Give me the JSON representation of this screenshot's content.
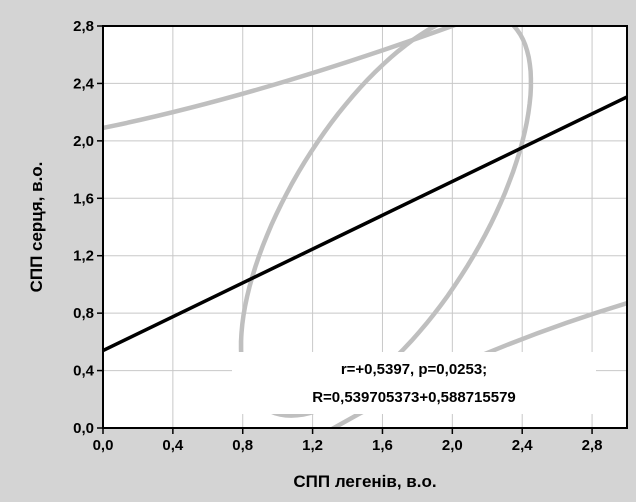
{
  "chart_data": {
    "type": "scatter",
    "title": "",
    "xlabel": "СПП легенів, в.о.",
    "ylabel": "СПП серця, в.о.",
    "xlim": [
      0,
      3.0
    ],
    "ylim": [
      0,
      2.8
    ],
    "grid": true,
    "x_ticks": [
      "0,0",
      "0,4",
      "0,8",
      "1,2",
      "1,6",
      "2,0",
      "2,4",
      "2,8"
    ],
    "y_ticks": [
      "0,0",
      "0,4",
      "0,8",
      "1,2",
      "1,6",
      "2,0",
      "2,4",
      "2,8"
    ],
    "regression": {
      "intercept": 0.539705373,
      "slope": 0.588715579,
      "color": "#000000"
    },
    "confidence_ellipse": {
      "center": [
        1.62,
        1.49
      ],
      "semi_axes": [
        1.6,
        0.68
      ],
      "angle_deg": 58,
      "color": "#bfbfbf"
    },
    "prediction_bands": {
      "upper_y_at_x0": 2.09,
      "upper_y_at_x3": 3.27,
      "lower_x_at_y0": 1.25,
      "lower_y_at_x3": 0.87,
      "color": "#bfbfbf"
    },
    "annotations": [
      "r=+0,5397, p=0,0253;",
      "R=0,539705373+0,588715579"
    ]
  }
}
